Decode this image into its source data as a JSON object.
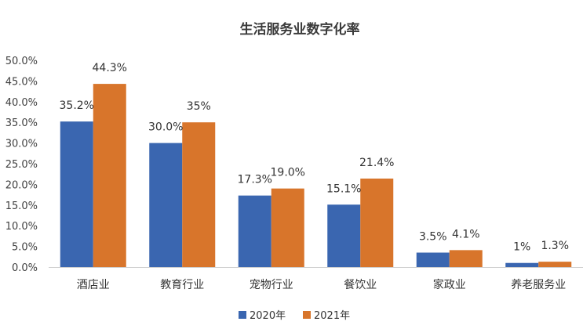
{
  "chart_data": {
    "type": "bar",
    "title": "生活服务业数字化率",
    "categories": [
      "酒店业",
      "教育行业",
      "宠物行业",
      "餐饮业",
      "家政业",
      "养老服务业"
    ],
    "series": [
      {
        "name": "2020年",
        "color": "#3a66b0",
        "values": [
          35.2,
          30.0,
          17.3,
          15.1,
          3.5,
          1.0
        ],
        "labels": [
          "35.2%",
          "30.0%",
          "17.3%",
          "15.1%",
          "3.5%",
          "1%"
        ]
      },
      {
        "name": "2021年",
        "color": "#d8752b",
        "values": [
          44.3,
          35.0,
          19.0,
          21.4,
          4.1,
          1.3
        ],
        "labels": [
          "44.3%",
          "35%",
          "19.0%",
          "21.4%",
          "4.1%",
          "1.3%"
        ]
      }
    ],
    "ylim": [
      0,
      50
    ],
    "ytick_values": [
      0,
      5,
      10,
      15,
      20,
      25,
      30,
      35,
      40,
      45,
      50
    ],
    "ytick_labels": [
      "0.0%",
      "5.0%",
      "10.0%",
      "15.0%",
      "20.0%",
      "25.0%",
      "30.0%",
      "35.0%",
      "40.0%",
      "45.0%",
      "50.0%"
    ],
    "xlabel": "",
    "ylabel": "",
    "grid": false,
    "legend_position": "bottom",
    "axis_color": "#d0d0d0"
  }
}
